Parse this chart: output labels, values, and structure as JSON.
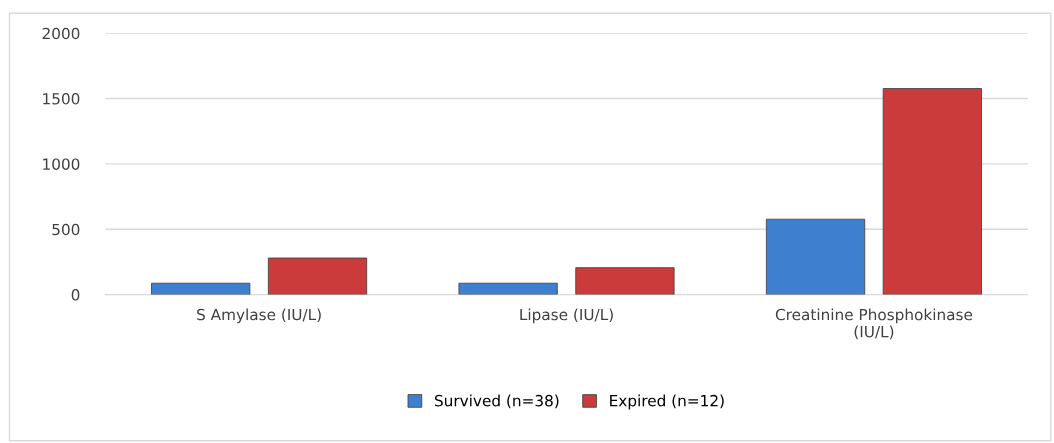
{
  "chart_data": {
    "type": "bar",
    "categories": [
      "S Amylase (IU/L)",
      "Lipase (IU/L)",
      "Creatinine Phosphokinase\n(IU/L)"
    ],
    "series": [
      {
        "name": "Survived (n=38)",
        "color": "#3f7fcf",
        "values": [
          87,
          87,
          577
        ]
      },
      {
        "name": "Expired (n=12)",
        "color": "#cc3b3b",
        "values": [
          280,
          206,
          1577
        ]
      }
    ],
    "ylim": [
      0,
      2000
    ],
    "yticks": [
      0,
      500,
      1000,
      1500,
      2000
    ],
    "grid": "y",
    "legend": "bottom"
  }
}
